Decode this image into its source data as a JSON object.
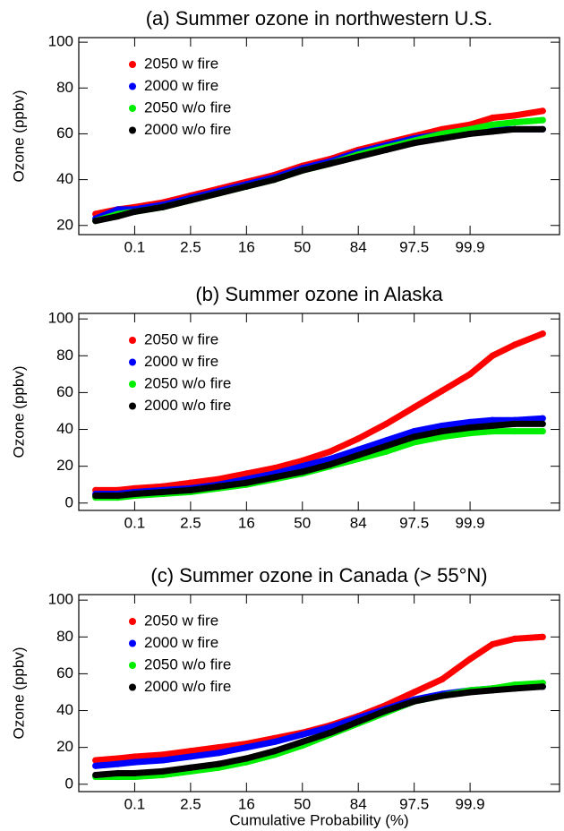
{
  "chart_data": [
    {
      "type": "line",
      "title": "(a) Summer ozone in northwestern U.S.",
      "y_label": "Ozone (ppbv)",
      "x": [
        -3.7,
        -3.3,
        -3,
        -2.5,
        -2,
        -1.5,
        -1,
        -0.5,
        0,
        0.5,
        1,
        1.5,
        2,
        2.5,
        3,
        3.4,
        3.8,
        4.3
      ],
      "xlim": [
        -4,
        4.6
      ],
      "xticks": [
        {
          "value": -3,
          "label": "0.1"
        },
        {
          "value": -2,
          "label": "2.5"
        },
        {
          "value": -1,
          "label": "16"
        },
        {
          "value": 0,
          "label": "50"
        },
        {
          "value": 1,
          "label": "84"
        },
        {
          "value": 2,
          "label": "97.5"
        },
        {
          "value": 3,
          "label": "99.9"
        }
      ],
      "ylim": [
        16,
        102
      ],
      "yticks": [
        20,
        40,
        60,
        80,
        100
      ],
      "legend": "upper left",
      "series": [
        {
          "name": "2050 w fire",
          "color": "#ff0000",
          "values": [
            25,
            27,
            28,
            30,
            33,
            36,
            39,
            42,
            46,
            49,
            53,
            56,
            59,
            62,
            64,
            67,
            68,
            70
          ]
        },
        {
          "name": "2000 w fire",
          "color": "#0000ff",
          "values": [
            23,
            27,
            27,
            29,
            32,
            35,
            38,
            41,
            45,
            48,
            52,
            55,
            58,
            60,
            62,
            62,
            62,
            62
          ]
        },
        {
          "name": "2050 w/o fire",
          "color": "#00ee00",
          "values": [
            22,
            25,
            26,
            28,
            31,
            34,
            37,
            40,
            44,
            47,
            51,
            54,
            57,
            60,
            62,
            64,
            65,
            66
          ]
        },
        {
          "name": "2000 w/o fire",
          "color": "#000000",
          "values": [
            22,
            24,
            26,
            28,
            31,
            34,
            37,
            40,
            44,
            47,
            50,
            53,
            56,
            58,
            60,
            61,
            62,
            62
          ]
        }
      ]
    },
    {
      "type": "line",
      "title": "(b) Summer ozone in Alaska",
      "y_label": "Ozone (ppbv)",
      "x": [
        -3.7,
        -3.3,
        -3,
        -2.5,
        -2,
        -1.5,
        -1,
        -0.5,
        0,
        0.5,
        1,
        1.5,
        2,
        2.5,
        3,
        3.4,
        3.8,
        4.3
      ],
      "xlim": [
        -4,
        4.6
      ],
      "xticks": [
        {
          "value": -3,
          "label": "0.1"
        },
        {
          "value": -2,
          "label": "2.5"
        },
        {
          "value": -1,
          "label": "16"
        },
        {
          "value": 0,
          "label": "50"
        },
        {
          "value": 1,
          "label": "84"
        },
        {
          "value": 2,
          "label": "97.5"
        },
        {
          "value": 3,
          "label": "99.9"
        }
      ],
      "ylim": [
        -4,
        103
      ],
      "yticks": [
        0,
        20,
        40,
        60,
        80,
        100
      ],
      "legend": "upper left",
      "series": [
        {
          "name": "2050 w fire",
          "color": "#ff0000",
          "values": [
            7,
            7,
            8,
            9,
            11,
            13,
            16,
            19,
            23,
            28,
            35,
            43,
            52,
            61,
            70,
            80,
            86,
            92
          ]
        },
        {
          "name": "2000 w fire",
          "color": "#0000ff",
          "values": [
            5,
            5,
            6,
            7,
            8,
            10,
            13,
            16,
            20,
            24,
            29,
            34,
            39,
            42,
            44,
            45,
            45,
            46
          ]
        },
        {
          "name": "2050 w/o fire",
          "color": "#00ee00",
          "values": [
            3,
            3,
            4,
            5,
            6,
            8,
            10,
            13,
            16,
            20,
            24,
            28,
            33,
            36,
            38,
            39,
            39,
            39
          ]
        },
        {
          "name": "2000 w/o fire",
          "color": "#000000",
          "values": [
            4,
            4,
            5,
            6,
            7,
            9,
            11,
            14,
            17,
            21,
            26,
            31,
            36,
            39,
            41,
            42,
            43,
            43
          ]
        }
      ]
    },
    {
      "type": "line",
      "title": "(c) Summer ozone in Canada (> 55°N)",
      "y_label": "Ozone (ppbv)",
      "x_label": "Cumulative Probability (%)",
      "x": [
        -3.7,
        -3.3,
        -3,
        -2.5,
        -2,
        -1.5,
        -1,
        -0.5,
        0,
        0.5,
        1,
        1.5,
        2,
        2.5,
        3,
        3.4,
        3.8,
        4.3
      ],
      "xlim": [
        -4,
        4.6
      ],
      "xticks": [
        {
          "value": -3,
          "label": "0.1"
        },
        {
          "value": -2,
          "label": "2.5"
        },
        {
          "value": -1,
          "label": "16"
        },
        {
          "value": 0,
          "label": "50"
        },
        {
          "value": 1,
          "label": "84"
        },
        {
          "value": 2,
          "label": "97.5"
        },
        {
          "value": 3,
          "label": "99.9"
        }
      ],
      "ylim": [
        -4,
        103
      ],
      "yticks": [
        0,
        20,
        40,
        60,
        80,
        100
      ],
      "legend": "upper left",
      "series": [
        {
          "name": "2050 w fire",
          "color": "#ff0000",
          "values": [
            13,
            14,
            15,
            16,
            18,
            20,
            22,
            25,
            28,
            32,
            37,
            43,
            50,
            57,
            68,
            76,
            79,
            80
          ]
        },
        {
          "name": "2000 w fire",
          "color": "#0000ff",
          "values": [
            10,
            11,
            12,
            13,
            15,
            17,
            20,
            23,
            27,
            31,
            36,
            41,
            46,
            49,
            51,
            52,
            53,
            53
          ]
        },
        {
          "name": "2050 w/o fire",
          "color": "#00ee00",
          "values": [
            4,
            4,
            4,
            5,
            7,
            9,
            12,
            16,
            21,
            27,
            33,
            39,
            45,
            48,
            51,
            52,
            54,
            55
          ]
        },
        {
          "name": "2000 w/o fire",
          "color": "#000000",
          "values": [
            5,
            6,
            6,
            7,
            9,
            11,
            14,
            18,
            23,
            28,
            34,
            40,
            45,
            48,
            50,
            51,
            52,
            53
          ]
        }
      ]
    }
  ]
}
